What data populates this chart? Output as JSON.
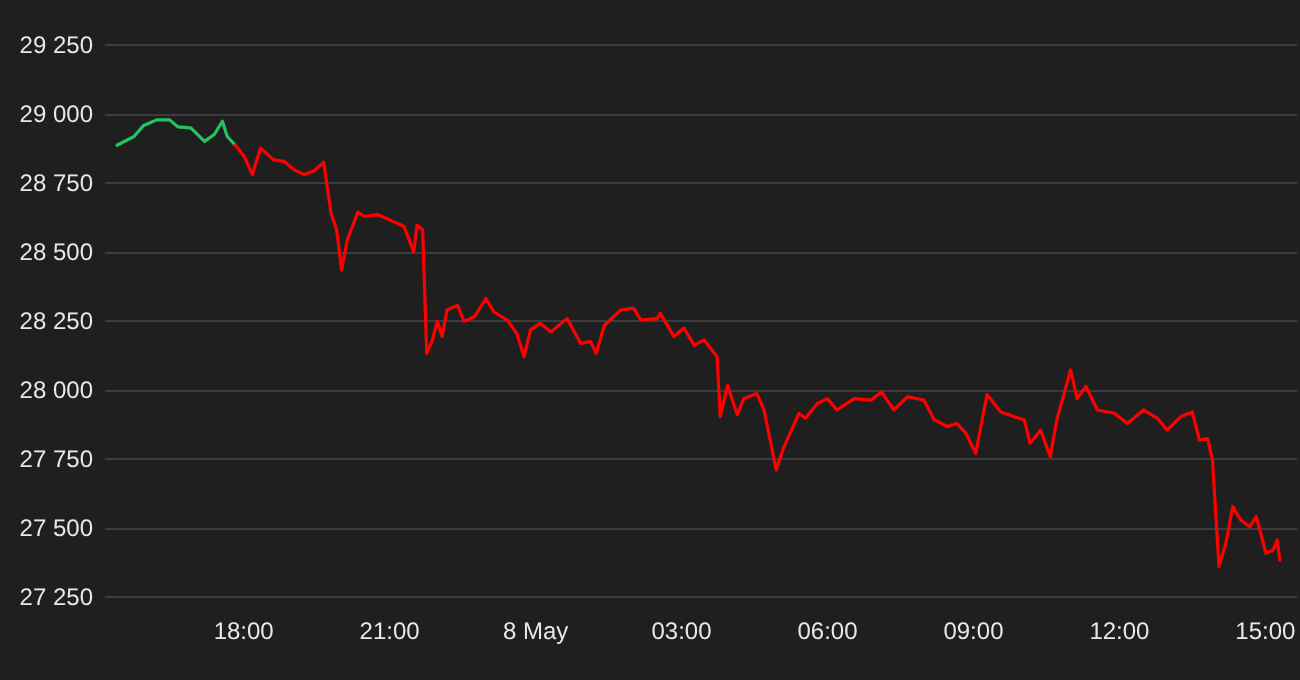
{
  "chart_data": {
    "type": "line",
    "xlim": [
      "--05-07T15:09",
      "--05-08T15:39"
    ],
    "xticks": [
      {
        "value": "--05-07T18:00",
        "label": "18:00"
      },
      {
        "value": "--05-07T21:00",
        "label": "21:00"
      },
      {
        "value": "--05-08T00:00",
        "label": "8 May"
      },
      {
        "value": "--05-08T03:00",
        "label": "03:00"
      },
      {
        "value": "--05-08T06:00",
        "label": "06:00"
      },
      {
        "value": "--05-08T09:00",
        "label": "09:00"
      },
      {
        "value": "--05-08T12:00",
        "label": "12:00"
      },
      {
        "value": "--05-08T15:00",
        "label": "15:00"
      }
    ],
    "ylim": [
      27250,
      29250
    ],
    "yticks": [
      {
        "value": 27250,
        "label": "27 250"
      },
      {
        "value": 27500,
        "label": "27 500"
      },
      {
        "value": 27750,
        "label": "27 750"
      },
      {
        "value": 28000,
        "label": "28 000"
      },
      {
        "value": 28250,
        "label": "28 250"
      },
      {
        "value": 28500,
        "label": "28 500"
      },
      {
        "value": 28750,
        "label": "28 750"
      },
      {
        "value": 29000,
        "label": "29 000"
      },
      {
        "value": 29250,
        "label": "29 250"
      }
    ],
    "grid": "y",
    "series": [
      {
        "color": "#22c55e",
        "x": [
          "--05-07T15:25",
          "--05-07T15:46",
          "--05-07T15:58",
          "--05-07T16:14",
          "--05-07T16:30",
          "--05-07T16:40",
          "--05-07T16:56",
          "--05-07T17:13",
          "--05-07T17:25",
          "--05-07T17:35",
          "--05-07T17:41",
          "--05-07T17:51"
        ],
        "values": [
          28883,
          28915,
          28955,
          28975,
          28975,
          28950,
          28946,
          28897,
          28922,
          28970,
          28915,
          28883
        ]
      },
      {
        "color": "#ff0000",
        "x": [
          "--05-07T17:51",
          "--05-07T18:02",
          "--05-07T18:12",
          "--05-07T18:22",
          "--05-07T18:38",
          "--05-07T18:51",
          "--05-07T19:04",
          "--05-07T19:16",
          "--05-07T19:28",
          "--05-07T19:40",
          "--05-07T19:49",
          "--05-07T19:56",
          "--05-07T20:02",
          "--05-07T20:09",
          "--05-07T20:22",
          "--05-07T20:30",
          "--05-07T20:46",
          "--05-07T21:02",
          "--05-07T21:19",
          "--05-07T21:31",
          "--05-07T21:35",
          "--05-07T21:42",
          "--05-07T21:47",
          "--05-07T21:54",
          "--05-07T22:00",
          "--05-07T22:06",
          "--05-07T22:12",
          "--05-07T22:25",
          "--05-07T22:33",
          "--05-07T22:46",
          "--05-07T23:00",
          "--05-07T23:10",
          "--05-07T23:26",
          "--05-07T23:38",
          "--05-07T23:47",
          "--05-07T23:55",
          "--05-08T00:07",
          "--05-08T00:20",
          "--05-08T00:40",
          "--05-08T00:57",
          "--05-08T01:09",
          "--05-08T01:16",
          "--05-08T01:26",
          "--05-08T01:46",
          "--05-08T02:02",
          "--05-08T02:11",
          "--05-08T02:31",
          "--05-08T02:35",
          "--05-08T02:52",
          "--05-08T03:04",
          "--05-08T03:17",
          "--05-08T03:29",
          "--05-08T03:45",
          "--05-08T03:49",
          "--05-08T03:58",
          "--05-08T04:10",
          "--05-08T04:18",
          "--05-08T04:34",
          "--05-08T04:43",
          "--05-08T04:58",
          "--05-08T05:07",
          "--05-08T05:26",
          "--05-08T05:34",
          "--05-08T05:49",
          "--05-08T06:01",
          "--05-08T06:13",
          "--05-08T06:34",
          "--05-08T06:55",
          "--05-08T07:08",
          "--05-08T07:23",
          "--05-08T07:40",
          "--05-08T08:00",
          "--05-08T08:13",
          "--05-08T08:29",
          "--05-08T08:41",
          "--05-08T08:52",
          "--05-08T09:04",
          "--05-08T09:18",
          "--05-08T09:35",
          "--05-08T09:51",
          "--05-08T10:04",
          "--05-08T10:11",
          "--05-08T10:24",
          "--05-08T10:36",
          "--05-08T10:44",
          "--05-08T11:01",
          "--05-08T11:09",
          "--05-08T11:20",
          "--05-08T11:34",
          "--05-08T11:55",
          "--05-08T12:11",
          "--05-08T12:31",
          "--05-08T12:48",
          "--05-08T13:00",
          "--05-08T13:17",
          "--05-08T13:31",
          "--05-08T13:40",
          "--05-08T13:50",
          "--05-08T13:56",
          "--05-08T14:04",
          "--05-08T14:13",
          "--05-08T14:21",
          "--05-08T14:31",
          "--05-08T14:42",
          "--05-08T14:50",
          "--05-08T15:02",
          "--05-08T15:11",
          "--05-08T15:16",
          "--05-08T15:19"
        ],
        "values": [
          28883,
          28842,
          28777,
          28873,
          28830,
          28825,
          28793,
          28777,
          28790,
          28822,
          28636,
          28576,
          28431,
          28540,
          28641,
          28625,
          28632,
          28612,
          28589,
          28496,
          28593,
          28576,
          28129,
          28177,
          28245,
          28190,
          28286,
          28303,
          28245,
          28262,
          28328,
          28279,
          28250,
          28202,
          28117,
          28214,
          28238,
          28207,
          28255,
          28165,
          28172,
          28129,
          28230,
          28286,
          28293,
          28250,
          28255,
          28274,
          28190,
          28221,
          28158,
          28178,
          28117,
          27900,
          28013,
          27907,
          27965,
          27984,
          27924,
          27707,
          27786,
          27912,
          27894,
          27948,
          27965,
          27924,
          27965,
          27960,
          27989,
          27924,
          27972,
          27960,
          27888,
          27864,
          27875,
          27839,
          27767,
          27980,
          27917,
          27900,
          27888,
          27803,
          27851,
          27755,
          27888,
          28069,
          27965,
          28009,
          27924,
          27912,
          27875,
          27924,
          27894,
          27851,
          27900,
          27917,
          27815,
          27820,
          27743,
          27357,
          27448,
          27574,
          27525,
          27501,
          27538,
          27405,
          27417,
          27453,
          27380
        ]
      }
    ]
  }
}
